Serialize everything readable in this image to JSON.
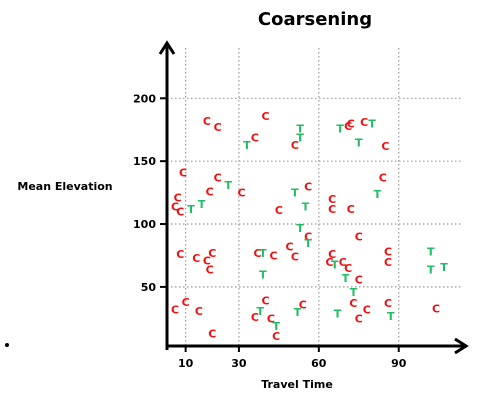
{
  "chart_data": {
    "type": "scatter",
    "title": "Coarsening",
    "xlabel": "Travel Time",
    "ylabel": "Mean Elevation",
    "xlim": [
      3,
      113
    ],
    "ylim": [
      3,
      240
    ],
    "x_ticks": [
      10,
      30,
      60,
      90
    ],
    "y_ticks": [
      50,
      100,
      150,
      200
    ],
    "grid": "dotted",
    "colors": {
      "C": "#ee1111",
      "T": "#22bb66"
    },
    "series": [
      {
        "marker": "C",
        "points": [
          [
            18,
            182
          ],
          [
            22,
            177
          ],
          [
            40,
            186
          ],
          [
            36,
            169
          ],
          [
            51,
            163
          ],
          [
            72,
            180
          ],
          [
            71,
            178
          ],
          [
            77,
            181
          ],
          [
            85,
            162
          ],
          [
            9,
            141
          ],
          [
            22,
            137
          ],
          [
            19,
            126
          ],
          [
            7,
            121
          ],
          [
            6,
            114
          ],
          [
            8,
            110
          ],
          [
            31,
            125
          ],
          [
            45,
            111
          ],
          [
            56,
            130
          ],
          [
            65,
            120
          ],
          [
            65,
            112
          ],
          [
            72,
            112
          ],
          [
            84,
            137
          ],
          [
            8,
            76
          ],
          [
            20,
            77
          ],
          [
            18,
            71
          ],
          [
            19,
            64
          ],
          [
            14,
            73
          ],
          [
            37,
            77
          ],
          [
            43,
            75
          ],
          [
            49,
            82
          ],
          [
            51,
            74
          ],
          [
            56,
            90
          ],
          [
            65,
            76
          ],
          [
            64,
            70
          ],
          [
            69,
            70
          ],
          [
            71,
            65
          ],
          [
            75,
            56
          ],
          [
            75,
            90
          ],
          [
            86,
            78
          ],
          [
            86,
            70
          ],
          [
            40,
            39
          ],
          [
            36,
            26
          ],
          [
            44,
            11
          ],
          [
            54,
            36
          ],
          [
            6,
            32
          ],
          [
            10,
            38
          ],
          [
            15,
            31
          ],
          [
            20,
            13
          ],
          [
            73,
            37
          ],
          [
            78,
            32
          ],
          [
            75,
            25
          ],
          [
            86,
            37
          ],
          [
            104,
            33
          ],
          [
            42,
            25
          ]
        ]
      },
      {
        "marker": "T",
        "points": [
          [
            33,
            163
          ],
          [
            53,
            176
          ],
          [
            53,
            169
          ],
          [
            68,
            176
          ],
          [
            75,
            165
          ],
          [
            80,
            180
          ],
          [
            12,
            112
          ],
          [
            16,
            116
          ],
          [
            26,
            131
          ],
          [
            51,
            125
          ],
          [
            55,
            114
          ],
          [
            82,
            124
          ],
          [
            39,
            77
          ],
          [
            39,
            60
          ],
          [
            53,
            97
          ],
          [
            56,
            85
          ],
          [
            66,
            68
          ],
          [
            70,
            57
          ],
          [
            73,
            46
          ],
          [
            102,
            78
          ],
          [
            102,
            64
          ],
          [
            107,
            66
          ],
          [
            38,
            31
          ],
          [
            44,
            19
          ],
          [
            52,
            30
          ],
          [
            67,
            29
          ],
          [
            87,
            27
          ]
        ]
      }
    ]
  }
}
